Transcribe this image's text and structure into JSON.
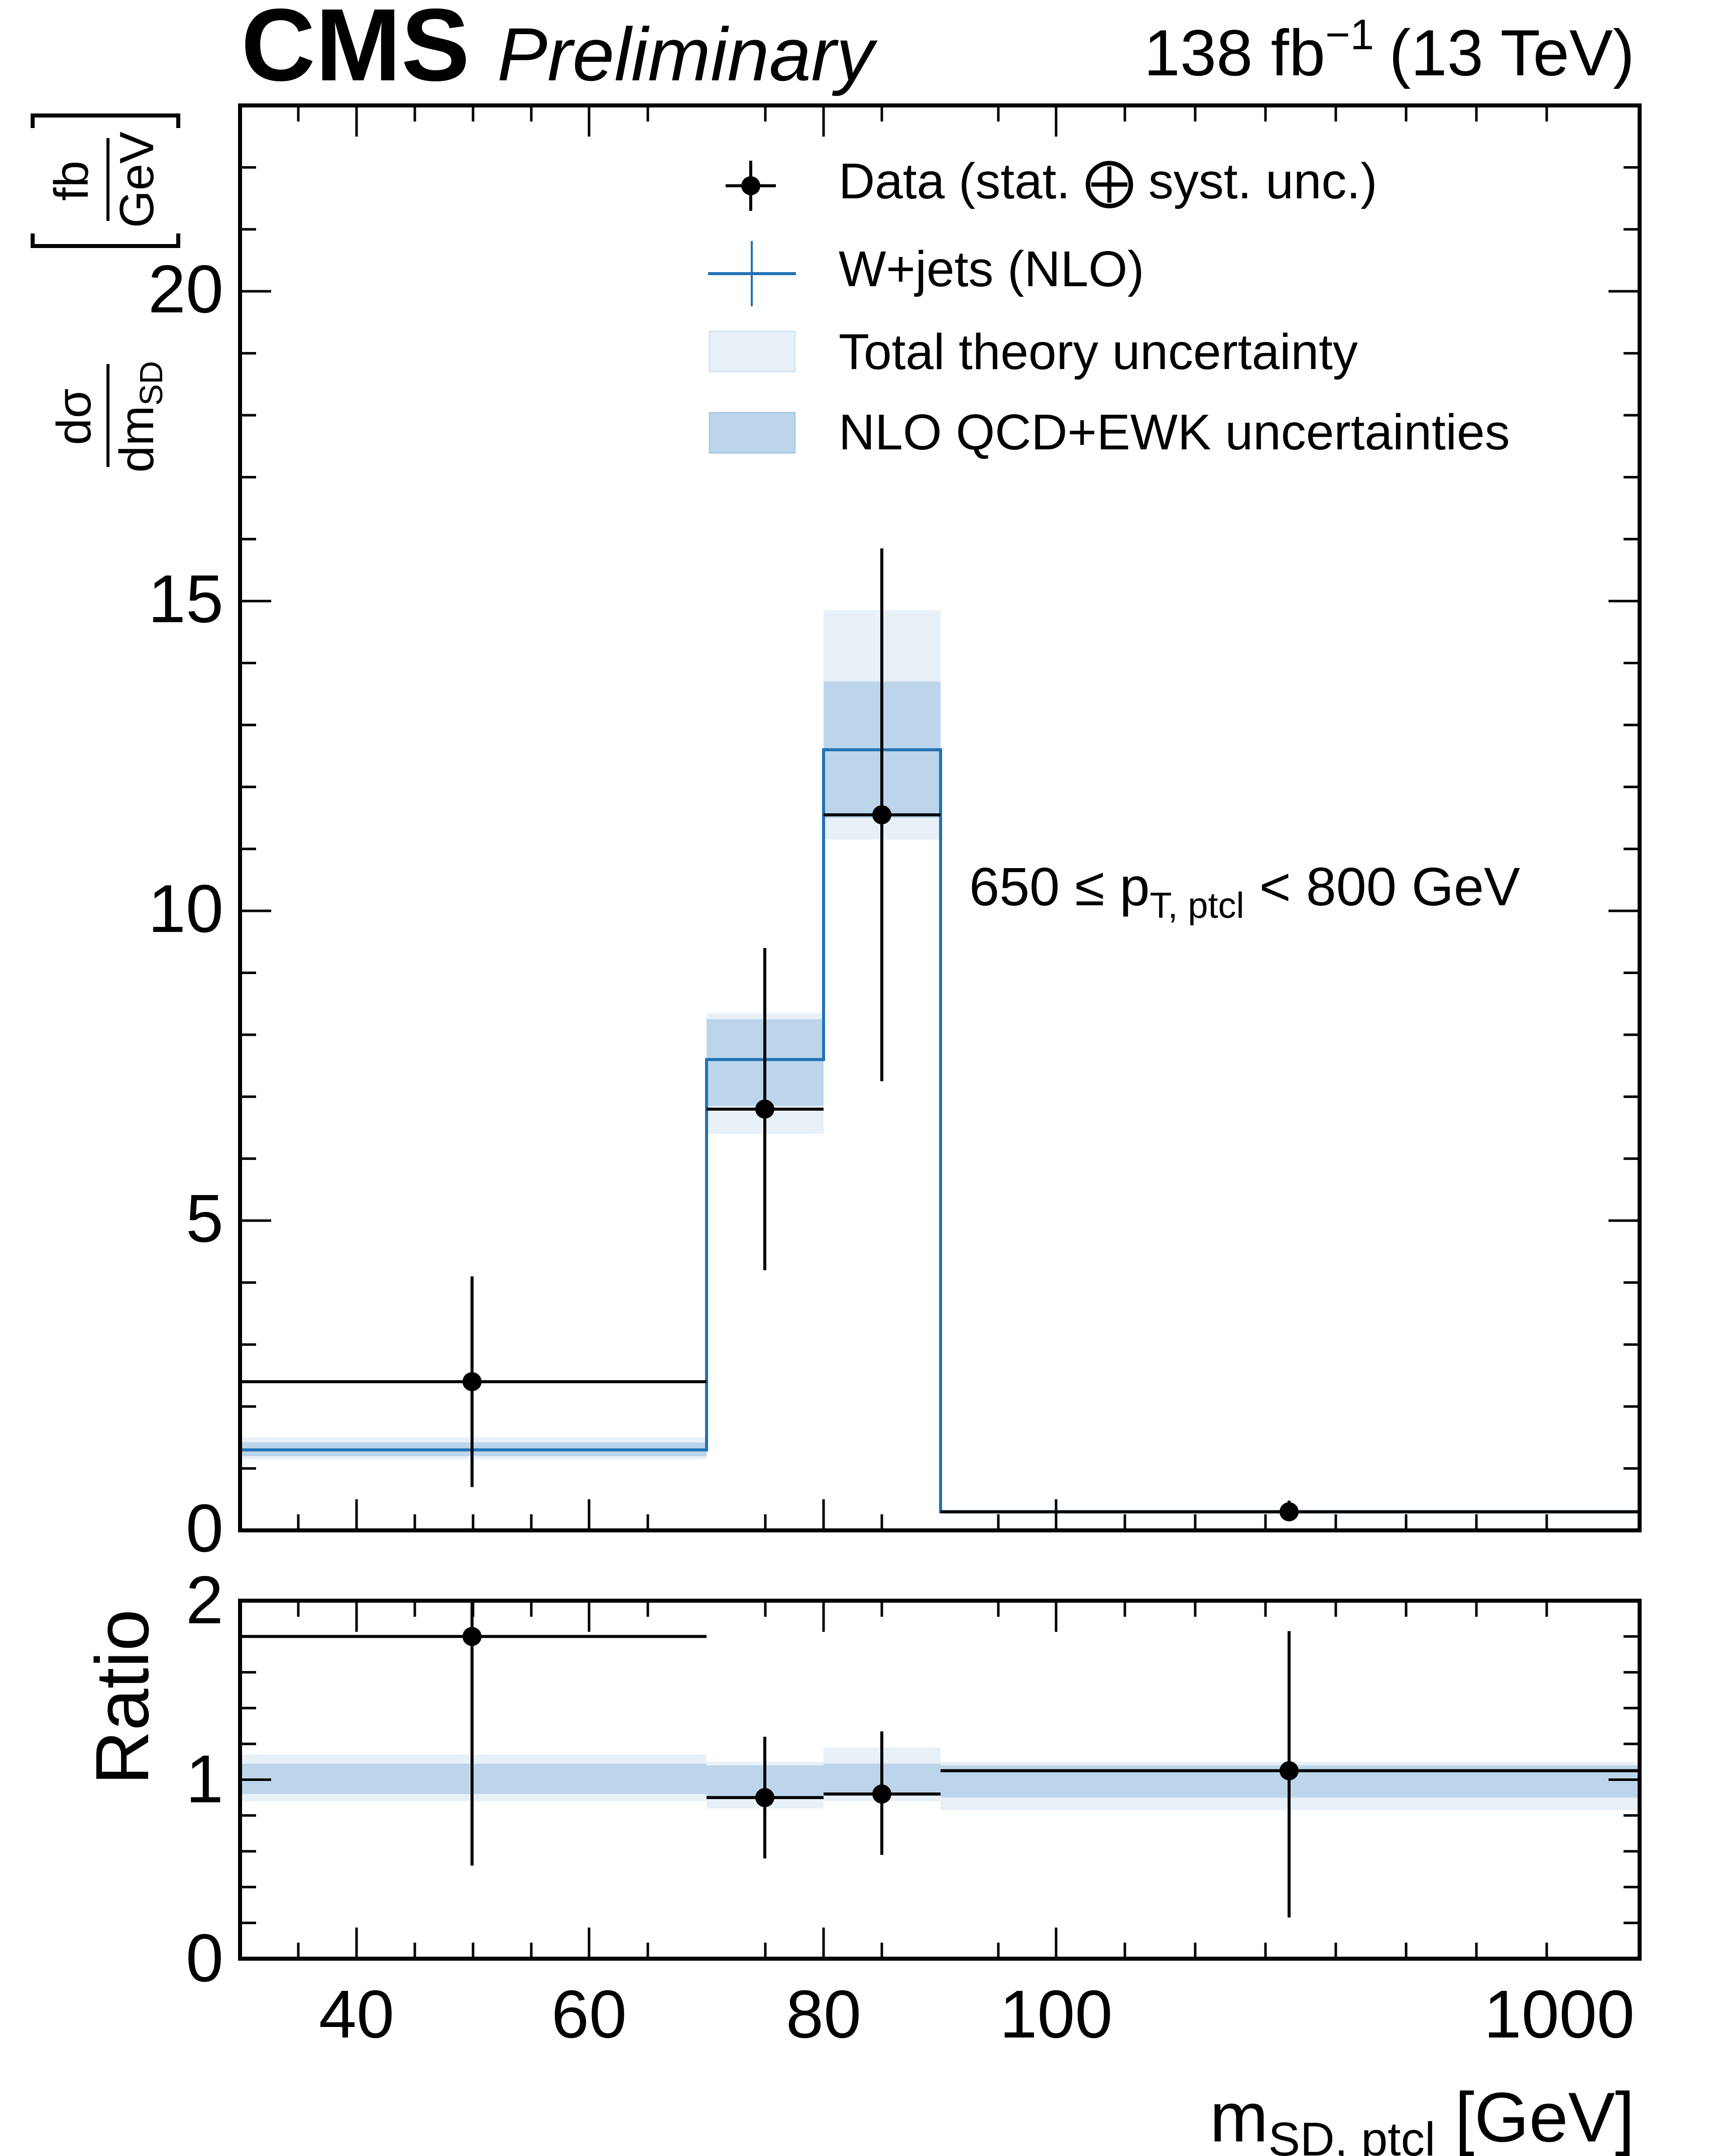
{
  "header": {
    "experiment": "CMS",
    "status": "Preliminary",
    "lumi_value": "138 fb",
    "lumi_exponent": "−1",
    "energy": "(13 TeV)"
  },
  "colors": {
    "data": "#000000",
    "prediction_line": "#2272b4",
    "total_band": "#e8f0f8",
    "nlo_band": "#bcd5ea"
  },
  "chart_data": [
    {
      "type": "histogram",
      "panel": "main",
      "ylabel": {
        "numerator": "dσ",
        "denominator_main": "dm",
        "denominator_sub": "SD",
        "unit_numerator": "fb",
        "unit_denominator": "GeV"
      },
      "ylim": [
        0,
        23
      ],
      "yticks": [
        "0",
        "5",
        "10",
        "15",
        "20"
      ],
      "annotation": {
        "prefix": "650 ≤ p",
        "sub": "T, ptcl",
        "suffix": " < 800 GeV"
      },
      "legend": {
        "placement": "top-right",
        "entries": [
          {
            "label": "Data (stat. ⨁ syst. unc.)",
            "kind": "data"
          },
          {
            "label": "W+jets (NLO)",
            "kind": "line"
          },
          {
            "label": "Total theory uncertainty",
            "kind": "total_band"
          },
          {
            "label": "NLO QCD+EWK uncertainties",
            "kind": "nlo_band"
          }
        ]
      },
      "bins": [
        {
          "data": 2.4,
          "data_lo": 0.7,
          "data_hi": 4.1,
          "pred": 1.3,
          "total_lo": 1.15,
          "total_hi": 1.5,
          "nlo_lo": 1.2,
          "nlo_hi": 1.42
        },
        {
          "data": 6.8,
          "data_lo": 4.2,
          "data_hi": 9.4,
          "pred": 7.6,
          "total_lo": 6.4,
          "total_hi": 8.35,
          "nlo_lo": 6.85,
          "nlo_hi": 8.25
        },
        {
          "data": 11.55,
          "data_lo": 7.25,
          "data_hi": 15.85,
          "pred": 12.6,
          "total_lo": 11.15,
          "total_hi": 14.85,
          "nlo_lo": 11.5,
          "nlo_hi": 13.7
        },
        {
          "data": 0.3,
          "data_lo": 0.15,
          "data_hi": 0.48,
          "pred": 0.3,
          "total_lo": 0.26,
          "total_hi": 0.34,
          "nlo_lo": 0.27,
          "nlo_hi": 0.33
        }
      ]
    },
    {
      "type": "histogram",
      "panel": "ratio",
      "ylabel": "Ratio",
      "ylim": [
        0,
        2
      ],
      "yticks": [
        "0",
        "1",
        "2"
      ],
      "xlabel": {
        "main": "m",
        "sub": "SD, ptcl",
        "unit": " [GeV]"
      },
      "xtick_labels": [
        "40",
        "60",
        "80",
        "100",
        "1000"
      ],
      "bins": [
        {
          "ratio": 1.8,
          "ratio_lo": 0.52,
          "ratio_hi": 2.0,
          "total_lo": 0.88,
          "total_hi": 1.14,
          "nlo_lo": 0.92,
          "nlo_hi": 1.09
        },
        {
          "ratio": 0.9,
          "ratio_lo": 0.56,
          "ratio_hi": 1.24,
          "total_lo": 0.84,
          "total_hi": 1.1,
          "nlo_lo": 0.9,
          "nlo_hi": 1.08
        },
        {
          "ratio": 0.92,
          "ratio_lo": 0.58,
          "ratio_hi": 1.27,
          "total_lo": 0.88,
          "total_hi": 1.18,
          "nlo_lo": 0.91,
          "nlo_hi": 1.09
        },
        {
          "ratio": 1.05,
          "ratio_lo": 0.23,
          "ratio_hi": 1.83,
          "total_lo": 0.83,
          "total_hi": 1.1,
          "nlo_lo": 0.9,
          "nlo_hi": 1.08
        }
      ]
    }
  ]
}
